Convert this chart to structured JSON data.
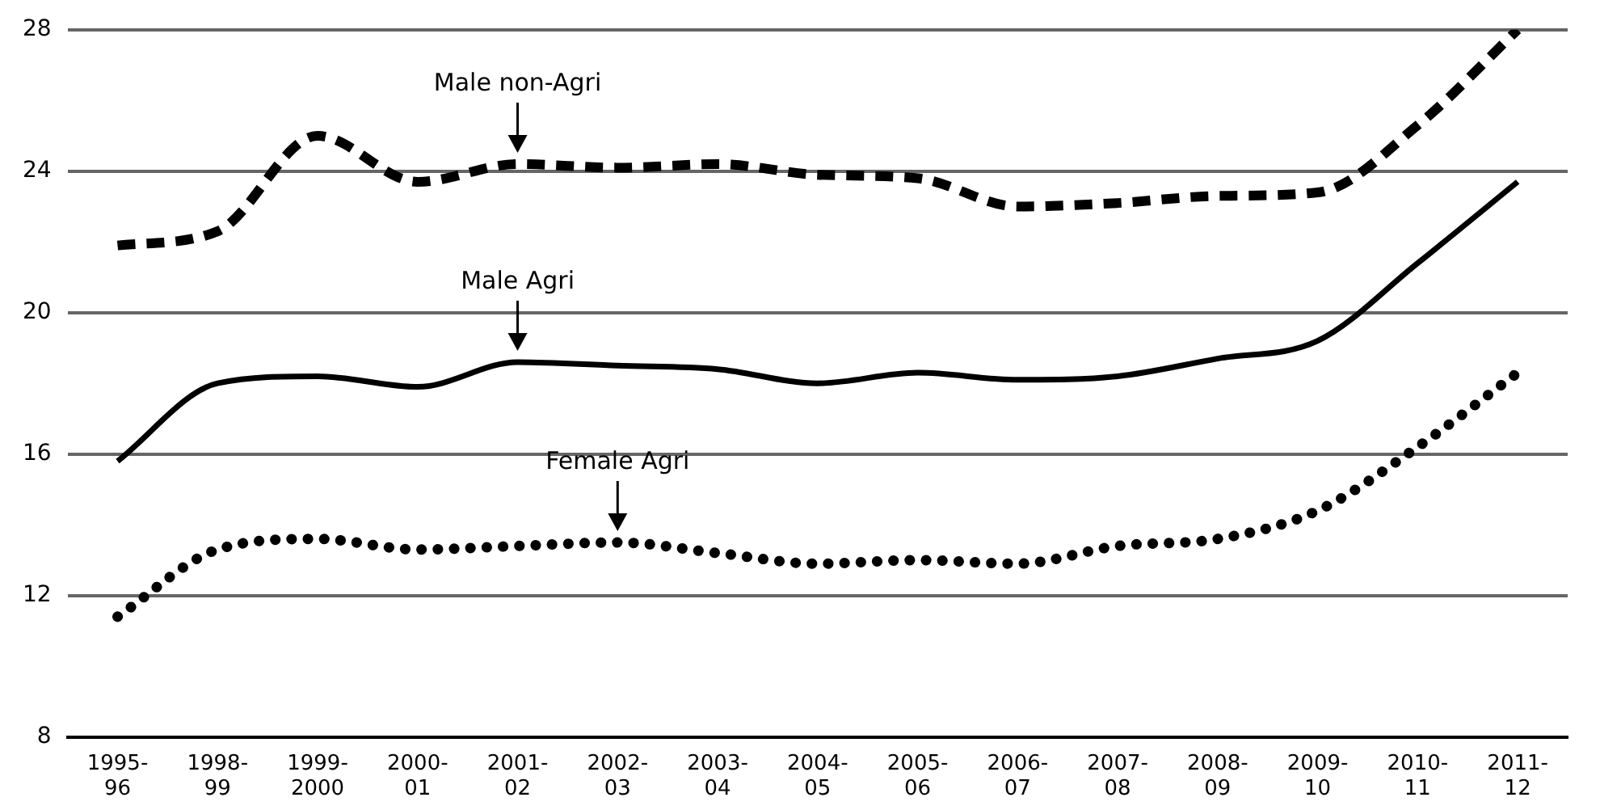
{
  "chart_data": {
    "type": "line",
    "categories": [
      "1995-96",
      "1998-99",
      "1999-2000",
      "2000-01",
      "2001-02",
      "2002-03",
      "2003-04",
      "2004-05",
      "2005-06",
      "2006-07",
      "2007-08",
      "2008-09",
      "2009-10",
      "2010-11",
      "2011-12"
    ],
    "series": [
      {
        "color": "#000000",
        "line_style": "dashed",
        "values": [
          21.9,
          22.3,
          25.0,
          23.7,
          24.2,
          24.1,
          24.2,
          23.9,
          23.8,
          23.0,
          23.1,
          23.3,
          23.4,
          25.3,
          28.0
        ]
      },
      {
        "color": "#000000",
        "line_style": "solid",
        "values": [
          15.8,
          18.0,
          18.2,
          17.9,
          18.6,
          18.5,
          18.4,
          18.0,
          18.3,
          18.1,
          18.2,
          18.7,
          19.2,
          21.4,
          23.7
        ]
      },
      {
        "color": "#000000",
        "line_style": "dotted",
        "values": [
          11.4,
          13.3,
          13.6,
          13.3,
          13.4,
          13.5,
          13.2,
          12.9,
          13.0,
          12.9,
          13.4,
          13.6,
          14.4,
          16.2,
          18.3
        ]
      }
    ],
    "ylim": [
      8,
      28
    ],
    "yticks": [
      8,
      12,
      16,
      20,
      24,
      28
    ],
    "grid": "y",
    "legend": false,
    "marker": "none",
    "annotations": [
      {
        "text": "Male non-Agri",
        "x": "2001-02",
        "y": 24.2
      },
      {
        "text": "Male Agri",
        "x": "2001-02",
        "y": 18.6
      },
      {
        "text": "Female Agri",
        "x": "2002-03",
        "y": 13.5
      }
    ]
  }
}
